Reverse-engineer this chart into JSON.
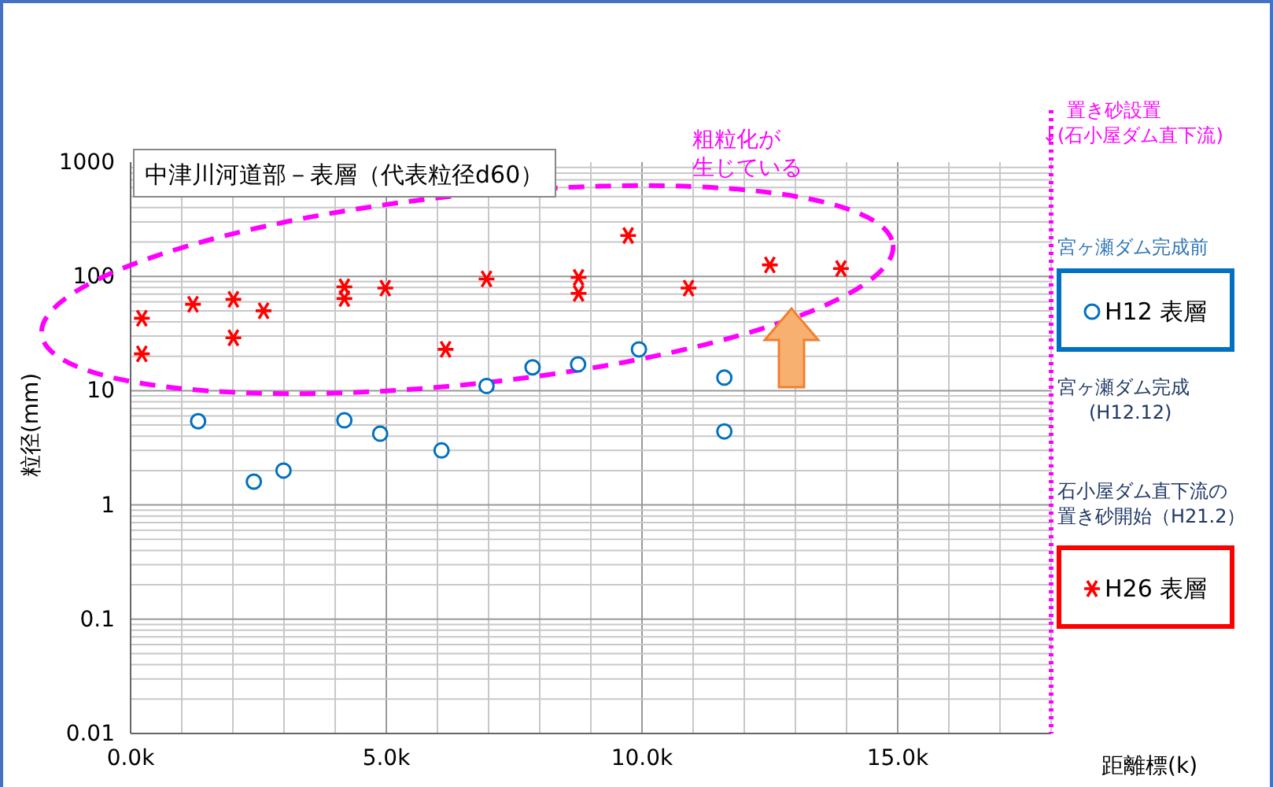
{
  "chart_data": {
    "type": "scatter",
    "title": "中津川河道部－表層（代表粒径d60）",
    "xlabel": "距離標(k)",
    "ylabel": "粒径(mm)",
    "xlim": [
      0,
      18
    ],
    "xticks": [
      {
        "value": 0,
        "label": "0.0k"
      },
      {
        "value": 5,
        "label": "5.0k"
      },
      {
        "value": 10,
        "label": "10.0k"
      },
      {
        "value": 15,
        "label": "15.0k"
      }
    ],
    "ylim": [
      0.01,
      1000
    ],
    "yticks": [
      0.01,
      0.1,
      1,
      10,
      100,
      1000
    ],
    "log": true,
    "grid": true,
    "legend": "right",
    "series": [
      {
        "name": "H12 表層",
        "color": "#0070c0",
        "marker": "circle",
        "x": [
          1.32,
          2.41,
          2.99,
          4.18,
          4.88,
          6.08,
          6.96,
          7.86,
          8.75,
          9.94,
          11.61,
          11.61
        ],
        "values": [
          5.4,
          1.6,
          2.0,
          5.5,
          4.2,
          3.0,
          11,
          16,
          17,
          23,
          13,
          4.4
        ]
      },
      {
        "name": "H26 表層",
        "color": "#ff0000",
        "marker": "cross",
        "x": [
          0.22,
          0.22,
          1.22,
          2.01,
          2.01,
          2.6,
          4.18,
          4.18,
          4.98,
          6.16,
          6.96,
          8.76,
          8.76,
          9.73,
          10.91,
          12.5,
          13.89
        ],
        "values": [
          43,
          21,
          57,
          63,
          29,
          50,
          81,
          64,
          79,
          23,
          95,
          98,
          71,
          228,
          79,
          126,
          117
        ]
      }
    ],
    "ref_lines": [
      {
        "axis": "x",
        "value": 18,
        "label": "置き砂設置\n↓(石小屋ダム直下流)",
        "color": "#ff00ff",
        "line_style": "dotted"
      }
    ],
    "annotations": [
      "粗粒化が生じている",
      "宮ヶ瀬ダム完成前",
      "宮ヶ瀬ダム完成\n(H12.12)",
      "石小屋ダム直下流の置き砂開始（H21.2）"
    ]
  }
}
